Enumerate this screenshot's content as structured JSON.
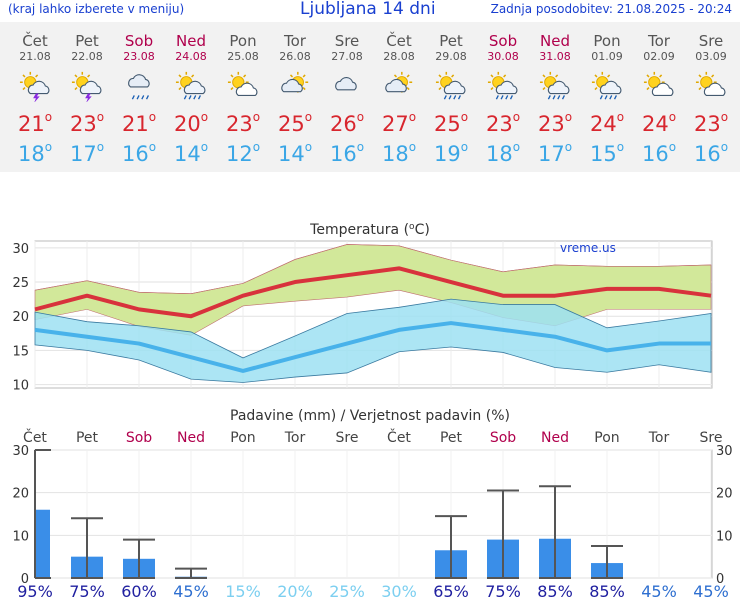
{
  "header": {
    "menu_hint": "(kraj lahko izberete v meniju)",
    "title": "Ljubljana 14 dni",
    "updated": "Zadnja posodobitev: 21.08.2025 - 20:24"
  },
  "days": [
    {
      "name": "Čet",
      "date": "21.08",
      "icon": "sun-cloud-thunder-icon",
      "max": "21",
      "min": "18",
      "weekend": false
    },
    {
      "name": "Pet",
      "date": "22.08",
      "icon": "sun-cloud-thunder-icon",
      "max": "23",
      "min": "17",
      "weekend": false
    },
    {
      "name": "Sob",
      "date": "23.08",
      "icon": "cloud-rain-icon",
      "max": "21",
      "min": "16",
      "weekend": true
    },
    {
      "name": "Ned",
      "date": "24.08",
      "icon": "sun-cloud-rain-icon",
      "max": "20",
      "min": "14",
      "weekend": true
    },
    {
      "name": "Pon",
      "date": "25.08",
      "icon": "sun-cloud-icon",
      "max": "23",
      "min": "12",
      "weekend": false
    },
    {
      "name": "Tor",
      "date": "26.08",
      "icon": "cloudy-sun-icon",
      "max": "25",
      "min": "14",
      "weekend": false
    },
    {
      "name": "Sre",
      "date": "27.08",
      "icon": "cloud-icon",
      "max": "26",
      "min": "16",
      "weekend": false
    },
    {
      "name": "Čet",
      "date": "28.08",
      "icon": "cloudy-sun-icon",
      "max": "27",
      "min": "18",
      "weekend": false
    },
    {
      "name": "Pet",
      "date": "29.08",
      "icon": "sun-cloud-rain-icon",
      "max": "25",
      "min": "19",
      "weekend": false
    },
    {
      "name": "Sob",
      "date": "30.08",
      "icon": "sun-cloud-rain-icon",
      "max": "23",
      "min": "18",
      "weekend": true
    },
    {
      "name": "Ned",
      "date": "31.08",
      "icon": "sun-cloud-rain-icon",
      "max": "23",
      "min": "17",
      "weekend": true
    },
    {
      "name": "Pon",
      "date": "01.09",
      "icon": "sun-cloud-rain-icon",
      "max": "24",
      "min": "15",
      "weekend": false
    },
    {
      "name": "Tor",
      "date": "02.09",
      "icon": "sun-cloud-icon",
      "max": "24",
      "min": "16",
      "weekend": false
    },
    {
      "name": "Sre",
      "date": "03.09",
      "icon": "sun-cloud-icon",
      "max": "23",
      "min": "16",
      "weekend": false
    }
  ],
  "colors": {
    "max_line": "#d8323c",
    "min_line": "#48b2ea",
    "max_band": "#d2e89a",
    "min_band": "#9ee0f2",
    "bar": "#3a8ee8",
    "error_bar": "#555555",
    "weekend": "#b0004c",
    "prob_dark": "#2020a0",
    "prob_light": "#7ccff0"
  },
  "chart_data": [
    {
      "type": "line",
      "title": "Temperatura (°C)",
      "watermark": "vreme.us",
      "ylim": [
        9.5,
        31
      ],
      "yticks": [
        10,
        15,
        20,
        25,
        30
      ],
      "series": [
        {
          "values": [
            21,
            23,
            21,
            20,
            23,
            25,
            26,
            27,
            25,
            23,
            23,
            24,
            24,
            23
          ],
          "band_low": [
            19.5,
            21,
            18.5,
            17.2,
            21.5,
            22.2,
            22.8,
            23.8,
            22,
            19.8,
            18.6,
            21,
            21,
            21
          ],
          "band_high": [
            23.8,
            25.2,
            23.5,
            23.3,
            24.8,
            28.3,
            30.5,
            30.3,
            28.2,
            26.5,
            27.5,
            27.3,
            27.3,
            27.5
          ]
        },
        {
          "values": [
            18,
            17,
            16,
            14,
            12,
            14,
            16,
            18,
            19,
            18,
            17,
            15,
            16,
            16
          ],
          "band_low": [
            15.8,
            15,
            13.6,
            10.8,
            10.3,
            11.1,
            11.7,
            14.8,
            15.5,
            14.7,
            12.5,
            11.8,
            12.9,
            11.8
          ],
          "band_high": [
            20.6,
            19.2,
            18.6,
            17.7,
            13.9,
            17.1,
            20.4,
            21.3,
            22.5,
            21.7,
            21.7,
            18.3,
            19.3,
            20.4
          ]
        }
      ]
    },
    {
      "type": "bar",
      "title": "Padavine (mm) / Verjetnost padavin (%)",
      "ylim": [
        0,
        30
      ],
      "yticks": [
        0,
        10,
        20,
        30
      ],
      "categories": [
        "Čet",
        "Pet",
        "Sob",
        "Ned",
        "Pon",
        "Tor",
        "Sre",
        "Čet",
        "Pet",
        "Sob",
        "Ned",
        "Pon",
        "Tor",
        "Sre"
      ],
      "values": [
        16,
        5,
        4.5,
        0.3,
        0,
        0,
        0,
        0,
        6.5,
        9,
        9.2,
        3.5,
        0,
        0
      ],
      "error_high": [
        30,
        14,
        9,
        2.2,
        0,
        0,
        0,
        0,
        14.5,
        20.5,
        21.5,
        7.5,
        0,
        0
      ],
      "probability": [
        "95%",
        "75%",
        "60%",
        "45%",
        "15%",
        "20%",
        "25%",
        "30%",
        "65%",
        "75%",
        "85%",
        "85%",
        "45%",
        "45%"
      ]
    }
  ]
}
